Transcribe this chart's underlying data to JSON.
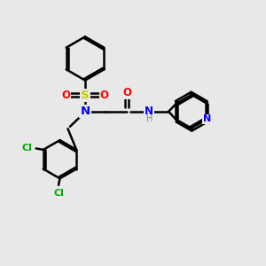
{
  "background_color": "#e8e8e8",
  "bond_color": "#000000",
  "bond_width": 1.8,
  "atom_colors": {
    "N": "#0000ff",
    "O": "#ff0000",
    "S": "#cccc00",
    "Cl": "#00aa00",
    "C": "#000000",
    "H": "#888888"
  },
  "font_size": 8.5,
  "figsize": [
    3.0,
    3.0
  ],
  "dpi": 100,
  "xlim": [
    0,
    10
  ],
  "ylim": [
    0,
    10
  ]
}
